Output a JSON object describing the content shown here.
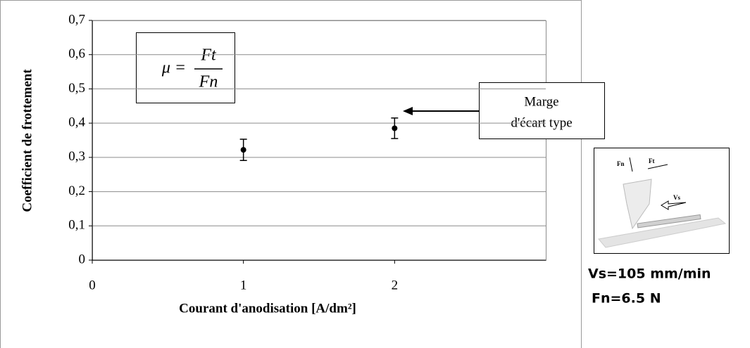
{
  "chart_data": {
    "type": "errorbar",
    "xlabel": "Courant d'anodisation [A/dm²]",
    "ylabel": "Coefficient de frottement",
    "x": [
      1,
      2
    ],
    "values": [
      0.322,
      0.385
    ],
    "errors": [
      0.031,
      0.03
    ],
    "color": "#000000",
    "xlim": [
      0,
      3
    ],
    "xticks": [
      0,
      1,
      2
    ],
    "ylim": [
      0,
      0.7
    ],
    "yticks": [
      0,
      {
        "value": 0.1,
        "label": "0,1"
      },
      {
        "value": 0.2,
        "label": "0,2"
      },
      {
        "value": 0.3,
        "label": "0,3"
      },
      {
        "value": 0.4,
        "label": "0,4"
      },
      {
        "value": 0.5,
        "label": "0,5"
      },
      {
        "value": 0.6,
        "label": "0,6"
      },
      {
        "value": 0.7,
        "label": "0,7"
      }
    ],
    "grid": true,
    "formula": {
      "left": "μ =",
      "numerator": "Ft",
      "denominator": "Fn"
    },
    "annotation": [
      "Marge",
      "d'écart type"
    ]
  },
  "inset": {
    "labels": [
      "Fn",
      "Ft",
      "Vs"
    ],
    "notes": [
      "Vs=105 mm/min",
      "Fn=6.5 N"
    ]
  }
}
